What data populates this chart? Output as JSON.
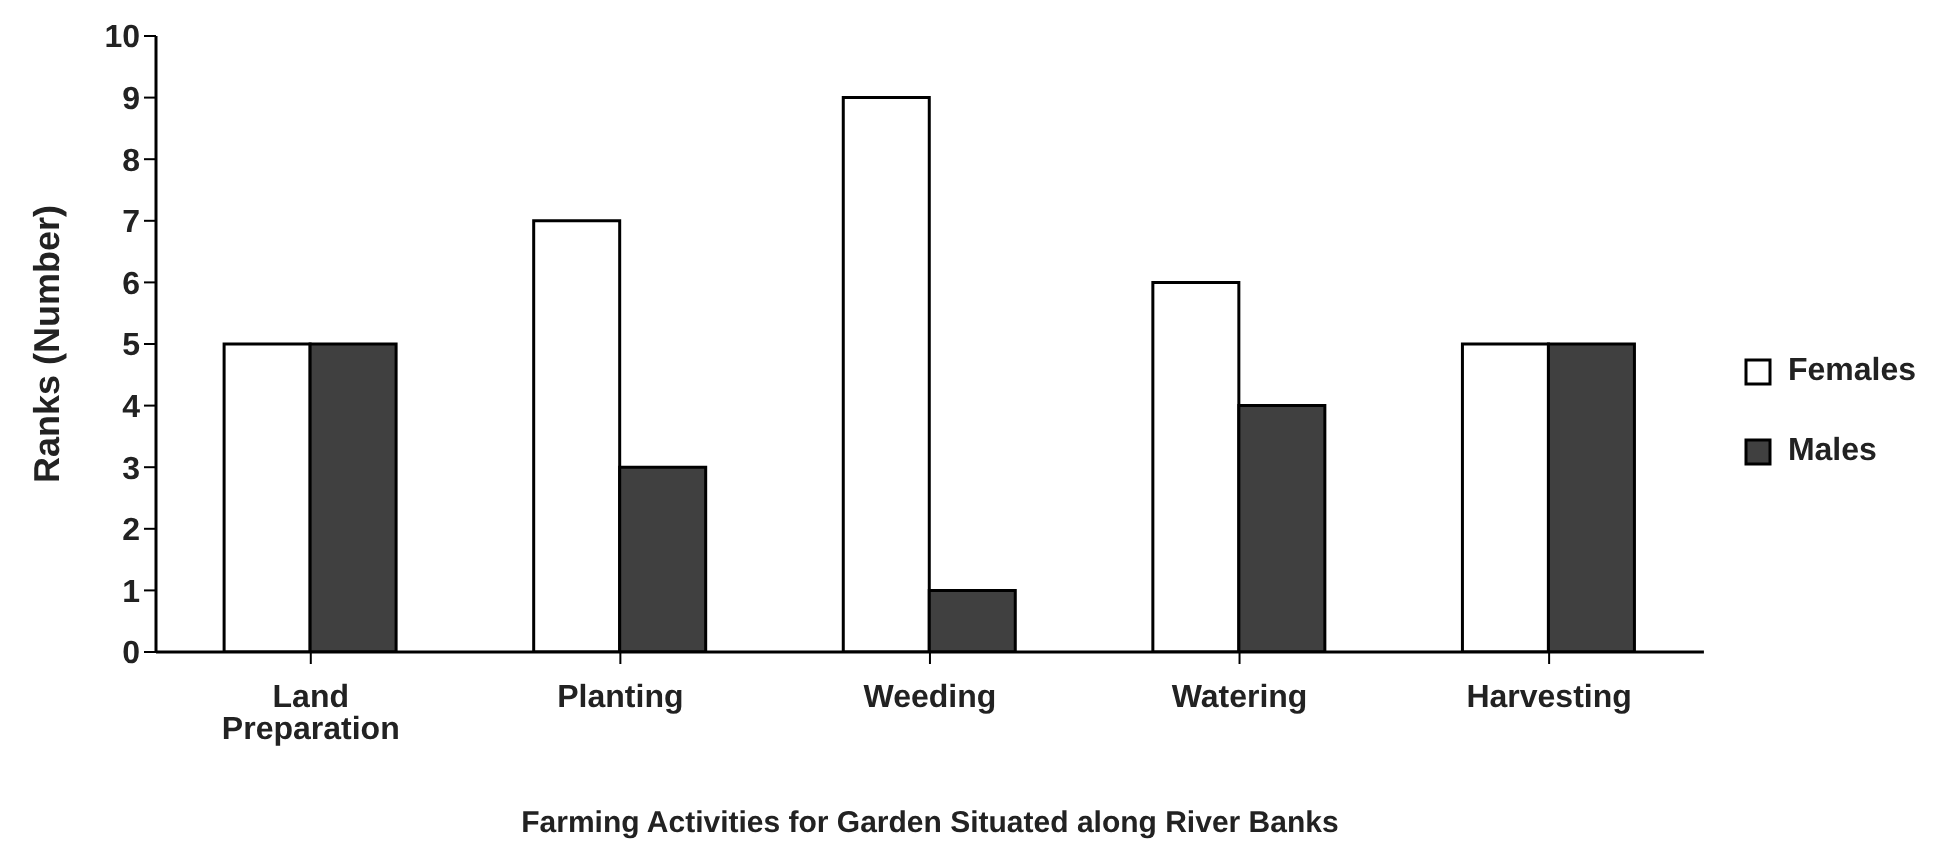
{
  "chart_data": {
    "type": "bar",
    "xlabel": "Farming Activities for Garden Situated along River Banks",
    "ylabel": "Ranks (Number)",
    "categories": [
      "Land Preparation",
      "Planting",
      "Weeding",
      "Watering",
      "Harvesting"
    ],
    "series": [
      {
        "name": "Females",
        "color": "#ffffff",
        "values": [
          5,
          7,
          9,
          6,
          5
        ]
      },
      {
        "name": "Males",
        "color": "#404040",
        "values": [
          5,
          3,
          1,
          4,
          5
        ]
      }
    ],
    "ylim": [
      0,
      10
    ],
    "yticks": [
      0,
      1,
      2,
      3,
      4,
      5,
      6,
      7,
      8,
      9,
      10
    ],
    "grid": false,
    "legend": "right"
  }
}
